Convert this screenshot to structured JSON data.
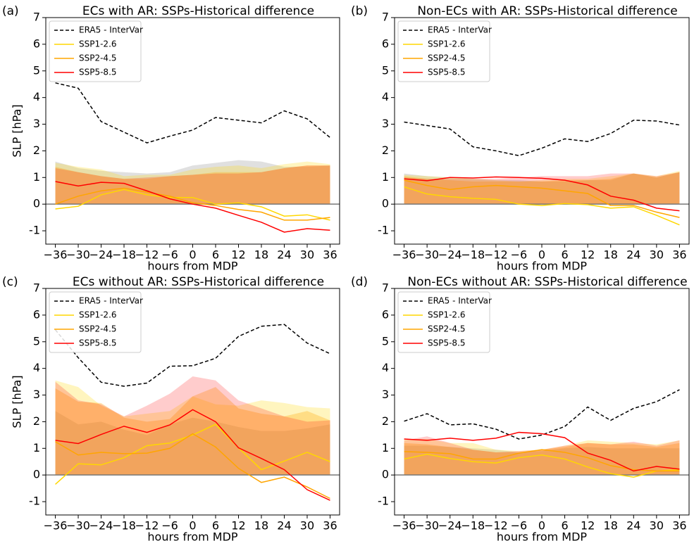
{
  "chart_data": [
    {
      "type": "line",
      "label": "(a)",
      "title": "ECs with AR:  SSPs-Historical difference",
      "ylabel": "SLP [hPa]",
      "xlabel": "hours from MDP",
      "x": [
        -36,
        -30,
        -24,
        -18,
        -12,
        -6,
        0,
        6,
        12,
        18,
        24,
        30,
        36
      ],
      "xlim": [
        -38.5,
        38.5
      ],
      "ylim": [
        -1.5,
        7
      ],
      "xticks": [
        {
          "value": -36,
          "label": "−36"
        },
        {
          "value": -30,
          "label": "−30"
        },
        {
          "value": -24,
          "label": "−24"
        },
        {
          "value": -18,
          "label": "−18"
        },
        {
          "value": -12,
          "label": "−12"
        },
        {
          "value": -6,
          "label": "−6"
        },
        0,
        6,
        12,
        18,
        24,
        30,
        36
      ],
      "yticks": [
        -1,
        0,
        1,
        2,
        3,
        4,
        5,
        6,
        7
      ],
      "legend": "upper left",
      "series": [
        {
          "name": "ERA5 - InterVar",
          "color": "#000000",
          "linestyle": "dashed",
          "values": [
            4.55,
            4.35,
            3.1,
            2.7,
            2.3,
            2.55,
            2.78,
            3.25,
            3.15,
            3.05,
            3.5,
            3.2,
            2.5
          ]
        },
        {
          "name": "SSP1-2.6",
          "color": "#ffd700",
          "linestyle": "solid",
          "values": [
            -0.18,
            -0.08,
            0.35,
            0.55,
            0.35,
            0.25,
            0.25,
            0.0,
            0.05,
            -0.1,
            -0.45,
            -0.4,
            -0.6
          ]
        },
        {
          "name": "SSP2-4.5",
          "color": "#ffa500",
          "linestyle": "solid",
          "values": [
            0.0,
            0.3,
            0.5,
            0.6,
            0.45,
            0.3,
            0.05,
            -0.05,
            -0.2,
            -0.3,
            -0.6,
            -0.6,
            -0.5
          ]
        },
        {
          "name": "SSP5-8.5",
          "color": "#ff0000",
          "linestyle": "solid",
          "values": [
            0.85,
            0.68,
            0.82,
            0.78,
            0.5,
            0.2,
            0.0,
            -0.15,
            -0.42,
            -0.68,
            -1.05,
            -0.92,
            -0.98
          ]
        }
      ],
      "bands": [
        {
          "color": "#999999",
          "alpha": 0.3,
          "values": [
            1.6,
            1.35,
            1.25,
            1.2,
            1.15,
            1.2,
            1.45,
            1.55,
            1.65,
            1.6,
            1.4,
            1.4,
            1.45
          ]
        },
        {
          "color": "#ffd700",
          "alpha": 0.25,
          "values": [
            1.55,
            1.4,
            1.3,
            1.05,
            1.1,
            1.1,
            1.3,
            1.4,
            1.45,
            1.35,
            1.5,
            1.6,
            1.5
          ]
        },
        {
          "color": "#ffa500",
          "alpha": 0.3,
          "values": [
            1.4,
            1.2,
            1.05,
            0.95,
            0.95,
            1.05,
            1.1,
            1.2,
            1.2,
            1.2,
            1.35,
            1.45,
            1.45
          ]
        },
        {
          "color": "#ff0000",
          "alpha": 0.2,
          "values": [
            1.35,
            1.2,
            1.05,
            0.95,
            1.0,
            1.05,
            1.1,
            1.15,
            1.15,
            1.2,
            1.35,
            1.45,
            1.45
          ]
        }
      ]
    },
    {
      "type": "line",
      "label": "(b)",
      "title": "Non-ECs with AR:  SSPs-Historical difference",
      "xlabel": "hours from MDP",
      "x": [
        -36,
        -30,
        -24,
        -18,
        -12,
        -6,
        0,
        6,
        12,
        18,
        24,
        30,
        36
      ],
      "xlim": [
        -38.5,
        38.5
      ],
      "ylim": [
        -1.5,
        7
      ],
      "xticks": [
        {
          "value": -36,
          "label": "−36"
        },
        {
          "value": -30,
          "label": "−30"
        },
        {
          "value": -24,
          "label": "−24"
        },
        {
          "value": -18,
          "label": "−18"
        },
        {
          "value": -12,
          "label": "−12"
        },
        {
          "value": -6,
          "label": "−6"
        },
        0,
        6,
        12,
        18,
        24,
        30,
        36
      ],
      "yticks": [
        -1,
        0,
        1,
        2,
        3,
        4,
        5,
        6,
        7
      ],
      "legend": "upper left",
      "series": [
        {
          "name": "ERA5 - InterVar",
          "color": "#000000",
          "linestyle": "dashed",
          "values": [
            3.08,
            2.95,
            2.82,
            2.15,
            2.0,
            1.82,
            2.1,
            2.45,
            2.35,
            2.65,
            3.15,
            3.12,
            2.97
          ]
        },
        {
          "name": "SSP1-2.6",
          "color": "#ffd700",
          "linestyle": "solid",
          "values": [
            0.65,
            0.38,
            0.28,
            0.22,
            0.18,
            0.0,
            -0.05,
            0.02,
            -0.02,
            -0.15,
            -0.1,
            -0.42,
            -0.78
          ]
        },
        {
          "name": "SSP2-4.5",
          "color": "#ffa500",
          "linestyle": "solid",
          "values": [
            0.9,
            0.7,
            0.55,
            0.65,
            0.7,
            0.65,
            0.6,
            0.5,
            0.4,
            -0.05,
            -0.05,
            -0.3,
            -0.5
          ]
        },
        {
          "name": "SSP5-8.5",
          "color": "#ff0000",
          "linestyle": "solid",
          "values": [
            0.95,
            0.88,
            1.0,
            0.98,
            1.02,
            1.0,
            0.97,
            0.9,
            0.72,
            0.3,
            0.15,
            -0.15,
            -0.25
          ]
        }
      ],
      "bands": [
        {
          "color": "#999999",
          "alpha": 0.3,
          "values": [
            1.15,
            1.05,
            1.0,
            0.95,
            0.9,
            0.9,
            0.85,
            0.85,
            0.9,
            0.9,
            1.15,
            1.0,
            1.2
          ]
        },
        {
          "color": "#ffd700",
          "alpha": 0.25,
          "values": [
            1.1,
            1.05,
            1.0,
            0.95,
            0.9,
            0.85,
            0.9,
            0.95,
            0.95,
            1.05,
            1.15,
            1.05,
            1.25
          ]
        },
        {
          "color": "#ffa500",
          "alpha": 0.3,
          "values": [
            1.05,
            0.95,
            0.9,
            0.85,
            0.85,
            0.85,
            0.85,
            0.9,
            0.9,
            0.95,
            1.15,
            1.0,
            1.2
          ]
        },
        {
          "color": "#ff0000",
          "alpha": 0.2,
          "values": [
            1.0,
            0.95,
            0.95,
            0.95,
            0.95,
            1.0,
            1.05,
            1.05,
            1.05,
            1.15,
            1.15,
            1.05,
            1.2
          ]
        }
      ]
    },
    {
      "type": "line",
      "label": "(c)",
      "title": "ECs without AR:  SSPs-Historical difference",
      "ylabel": "SLP [hPa]",
      "xlabel": "hours from MDP",
      "x": [
        -36,
        -30,
        -24,
        -18,
        -12,
        -6,
        0,
        6,
        12,
        18,
        24,
        30,
        36
      ],
      "xlim": [
        -38.5,
        38.5
      ],
      "ylim": [
        -1.5,
        7
      ],
      "xticks": [
        {
          "value": -36,
          "label": "−36"
        },
        {
          "value": -30,
          "label": "−30"
        },
        {
          "value": -24,
          "label": "−24"
        },
        {
          "value": -18,
          "label": "−18"
        },
        {
          "value": -12,
          "label": "−12"
        },
        {
          "value": -6,
          "label": "−6"
        },
        0,
        6,
        12,
        18,
        24,
        30,
        36
      ],
      "yticks": [
        -1,
        0,
        1,
        2,
        3,
        4,
        5,
        6,
        7
      ],
      "legend": "upper left",
      "series": [
        {
          "name": "ERA5 - InterVar",
          "color": "#000000",
          "linestyle": "dashed",
          "values": [
            5.45,
            4.4,
            3.48,
            3.33,
            3.45,
            4.08,
            4.1,
            4.38,
            5.2,
            5.58,
            5.65,
            4.95,
            4.55
          ]
        },
        {
          "name": "SSP1-2.6",
          "color": "#ffd700",
          "linestyle": "solid",
          "values": [
            -0.35,
            0.42,
            0.38,
            0.65,
            1.1,
            1.2,
            1.5,
            1.9,
            1.02,
            0.2,
            0.52,
            0.85,
            0.5
          ]
        },
        {
          "name": "SSP2-4.5",
          "color": "#ffa500",
          "linestyle": "solid",
          "values": [
            1.25,
            0.75,
            0.85,
            0.8,
            0.82,
            1.0,
            1.55,
            1.05,
            0.25,
            -0.28,
            -0.08,
            -0.45,
            -0.88
          ]
        },
        {
          "name": "SSP5-8.5",
          "color": "#ff0000",
          "linestyle": "solid",
          "values": [
            1.3,
            1.18,
            1.52,
            1.83,
            1.6,
            1.88,
            2.45,
            2.0,
            1.02,
            0.62,
            0.2,
            -0.55,
            -0.95
          ]
        }
      ],
      "bands": [
        {
          "color": "#999999",
          "alpha": 0.3,
          "values": [
            2.4,
            1.9,
            2.0,
            1.7,
            1.5,
            1.9,
            2.15,
            2.0,
            1.8,
            1.65,
            1.65,
            1.75,
            1.9
          ]
        },
        {
          "color": "#ffd700",
          "alpha": 0.25,
          "values": [
            3.55,
            3.3,
            2.6,
            2.2,
            2.3,
            2.4,
            2.95,
            2.65,
            2.6,
            2.8,
            2.7,
            2.55,
            2.5
          ]
        },
        {
          "color": "#ffa500",
          "alpha": 0.3,
          "values": [
            3.25,
            2.75,
            2.7,
            2.15,
            2.0,
            2.1,
            2.95,
            3.3,
            2.5,
            2.3,
            2.2,
            2.4,
            2.05
          ]
        },
        {
          "color": "#ff0000",
          "alpha": 0.2,
          "values": [
            3.5,
            2.8,
            2.65,
            2.2,
            2.6,
            3.05,
            3.7,
            3.55,
            2.8,
            2.5,
            2.2,
            2.0,
            2.05
          ]
        }
      ]
    },
    {
      "type": "line",
      "label": "(d)",
      "title": "Non-ECs without AR:  SSPs-Historical difference",
      "xlabel": "hours from MDP",
      "x": [
        -36,
        -30,
        -24,
        -18,
        -12,
        -6,
        0,
        6,
        12,
        18,
        24,
        30,
        36
      ],
      "xlim": [
        -38.5,
        38.5
      ],
      "ylim": [
        -1.5,
        7
      ],
      "xticks": [
        {
          "value": -36,
          "label": "−36"
        },
        {
          "value": -30,
          "label": "−30"
        },
        {
          "value": -24,
          "label": "−24"
        },
        {
          "value": -18,
          "label": "−18"
        },
        {
          "value": -12,
          "label": "−12"
        },
        {
          "value": -6,
          "label": "−6"
        },
        0,
        6,
        12,
        18,
        24,
        30,
        36
      ],
      "yticks": [
        -1,
        0,
        1,
        2,
        3,
        4,
        5,
        6,
        7
      ],
      "legend": "upper left",
      "series": [
        {
          "name": "ERA5 - InterVar",
          "color": "#000000",
          "linestyle": "dashed",
          "values": [
            2.02,
            2.3,
            1.88,
            1.92,
            1.72,
            1.35,
            1.5,
            1.82,
            2.55,
            2.05,
            2.5,
            2.75,
            3.2
          ]
        },
        {
          "name": "SSP1-2.6",
          "color": "#ffd700",
          "linestyle": "solid",
          "values": [
            0.6,
            0.78,
            0.62,
            0.5,
            0.45,
            0.65,
            0.75,
            0.6,
            0.3,
            0.05,
            -0.08,
            0.15,
            0.2
          ]
        },
        {
          "name": "SSP2-4.5",
          "color": "#ffa500",
          "linestyle": "solid",
          "values": [
            0.88,
            0.85,
            0.8,
            0.6,
            0.6,
            0.82,
            0.95,
            0.85,
            0.65,
            0.35,
            0.2,
            0.15,
            0.15
          ]
        },
        {
          "name": "SSP5-8.5",
          "color": "#ff0000",
          "linestyle": "solid",
          "values": [
            1.35,
            1.3,
            1.38,
            1.3,
            1.38,
            1.6,
            1.55,
            1.4,
            0.82,
            0.55,
            0.15,
            0.32,
            0.22
          ]
        }
      ],
      "bands": [
        {
          "color": "#999999",
          "alpha": 0.3,
          "values": [
            1.1,
            1.1,
            1.05,
            1.0,
            0.95,
            0.85,
            0.9,
            1.0,
            1.05,
            1.0,
            1.0,
            1.0,
            1.0
          ]
        },
        {
          "color": "#ffd700",
          "alpha": 0.25,
          "values": [
            1.35,
            1.35,
            1.2,
            1.2,
            0.95,
            0.9,
            0.95,
            1.1,
            1.3,
            1.25,
            1.2,
            1.15,
            1.3
          ]
        },
        {
          "color": "#ffa500",
          "alpha": 0.3,
          "values": [
            1.2,
            1.15,
            1.05,
            0.95,
            0.85,
            0.85,
            0.95,
            1.05,
            1.2,
            1.15,
            1.15,
            1.05,
            1.2
          ]
        },
        {
          "color": "#ff0000",
          "alpha": 0.2,
          "values": [
            1.3,
            1.45,
            1.2,
            0.95,
            0.85,
            0.9,
            0.95,
            1.1,
            1.2,
            1.15,
            1.25,
            1.1,
            1.3
          ]
        }
      ]
    }
  ]
}
